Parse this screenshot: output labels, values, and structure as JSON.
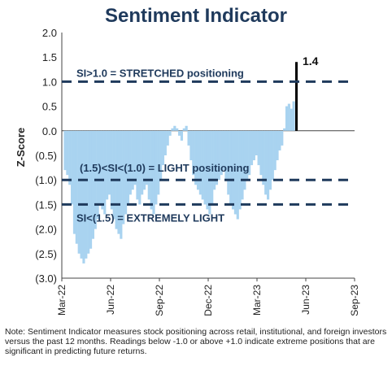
{
  "chart_data": {
    "type": "bar",
    "title": "Sentiment Indicator",
    "ylabel": "Z-Score",
    "xlabel": "",
    "ylim": [
      -3.0,
      2.0
    ],
    "yticks": [
      2.0,
      1.5,
      1.0,
      0.5,
      0.0,
      -0.5,
      -1.0,
      -1.5,
      -2.0,
      -2.5,
      -3.0
    ],
    "ytick_labels": [
      "2.0",
      "1.5",
      "1.0",
      "0.5",
      "0.0",
      "(0.5)",
      "(1.0)",
      "(1.5)",
      "(2.0)",
      "(2.5)",
      "(3.0)"
    ],
    "xtick_labels": [
      "Mar-22",
      "Jun-22",
      "Sep-22",
      "Dec-22",
      "Mar-23",
      "Jun-23",
      "Sep-23"
    ],
    "bar_color": "#a9d3f0",
    "latest_bar_color": "#000000",
    "reference_line_color": "#1f3a5c",
    "reference_lines": [
      1.0,
      -1.0,
      -1.5
    ],
    "latest_value": 1.4,
    "latest_label": "1.4",
    "annotations": [
      "SI>1.0 = STRETCHED positioning",
      "(1.5)<SI<(1.0) = LIGHT positioning",
      "SI<(1.5) = EXTREMELY LIGHT"
    ],
    "values": [
      -0.8,
      -0.9,
      -1.1,
      -1.5,
      -2.1,
      -2.3,
      -2.5,
      -2.6,
      -2.7,
      -2.6,
      -2.5,
      -2.4,
      -2.2,
      -2.0,
      -1.8,
      -1.5,
      -1.6,
      -1.7,
      -1.4,
      -1.3,
      -1.6,
      -1.8,
      -2.0,
      -2.1,
      -2.2,
      -1.9,
      -1.7,
      -1.5,
      -1.3,
      -1.2,
      -1.1,
      -1.4,
      -1.5,
      -1.3,
      -1.2,
      -1.1,
      -1.4,
      -1.6,
      -1.7,
      -1.5,
      -1.3,
      -1.0,
      -0.7,
      -0.5,
      -0.3,
      -0.1,
      0.05,
      0.1,
      0.05,
      -0.1,
      -0.2,
      0.05,
      0.1,
      -0.3,
      -0.6,
      -0.9,
      -1.1,
      -1.2,
      -1.3,
      -1.4,
      -1.5,
      -1.6,
      -1.7,
      -1.5,
      -1.2,
      -1.1,
      -1.0,
      -0.9,
      -0.8,
      -1.0,
      -1.3,
      -1.5,
      -1.6,
      -1.7,
      -1.8,
      -1.6,
      -1.4,
      -1.2,
      -1.0,
      -0.9,
      -0.7,
      -0.6,
      -0.5,
      -0.7,
      -0.9,
      -1.1,
      -1.3,
      -1.4,
      -1.2,
      -1.0,
      -0.8,
      -0.6,
      -0.4,
      -0.3,
      0.05,
      0.5,
      0.55,
      0.45,
      0.6,
      1.4
    ]
  },
  "note": "Note: Sentiment Indicator measures stock positioning across retail, institutional, and foreign investors versus the past 12 months. Readings below -1.0 or above +1.0 indicate extreme positions that are significant in predicting future returns."
}
